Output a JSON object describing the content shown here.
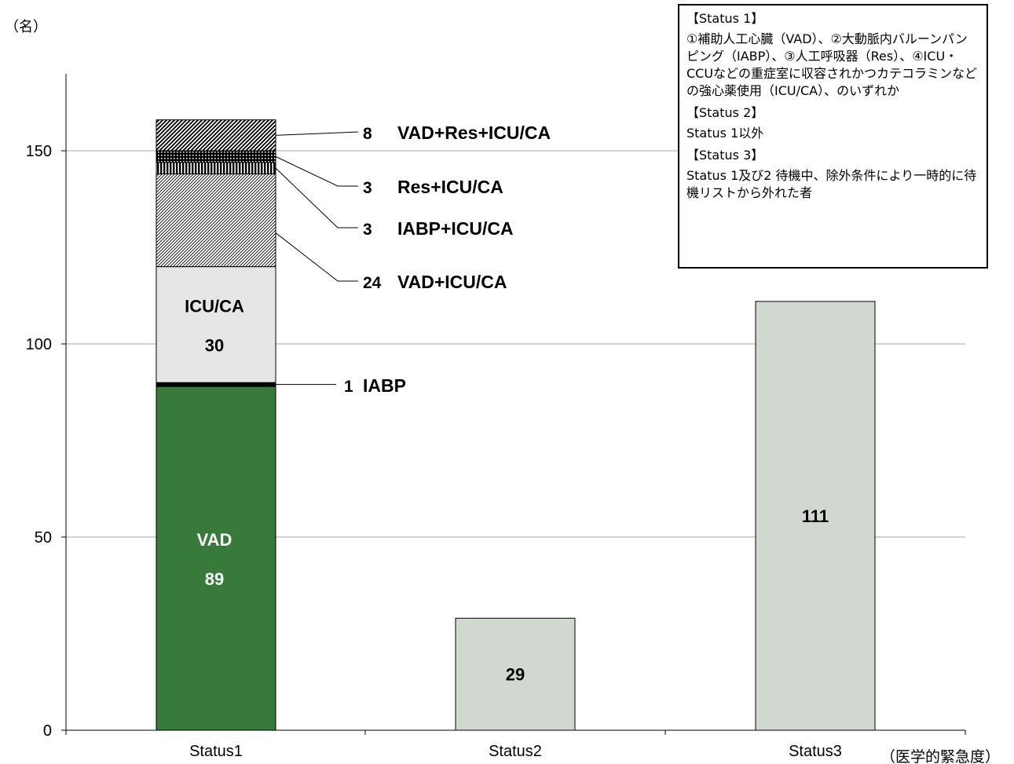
{
  "chart_data": {
    "type": "bar",
    "stacked": true,
    "y_unit_label": "（名）",
    "x_unit_label": "（医学的緊急度）",
    "categories": [
      "Status1",
      "Status2",
      "Status3"
    ],
    "ylim": [
      0,
      170
    ],
    "yticks": [
      0,
      50,
      100,
      150
    ],
    "grid": true,
    "status1_segments": [
      {
        "name": "VAD",
        "value": 89,
        "color": "#377a3a",
        "pattern": "solid",
        "inside_label": true,
        "inside_label_color": "#ffffff"
      },
      {
        "name": "IABP",
        "value": 1,
        "color": "#000000",
        "pattern": "solid",
        "callout_value": "1"
      },
      {
        "name": "ICU/CA",
        "value": 30,
        "color": "#e6e6e6",
        "pattern": "solid",
        "inside_label": true,
        "inside_label_color": "#000000"
      },
      {
        "name": "VAD+ICU/CA",
        "value": 24,
        "color": "#000000",
        "pattern": "diagonal-fine",
        "callout_value": "24"
      },
      {
        "name": "IABP+ICU/CA",
        "value": 3,
        "color": "#000000",
        "pattern": "vertical",
        "callout_value": "3"
      },
      {
        "name": "Res+ICU/CA",
        "value": 3,
        "color": "#000000",
        "pattern": "cross",
        "callout_value": "3"
      },
      {
        "name": "VAD+Res+ICU/CA",
        "value": 8,
        "color": "#000000",
        "pattern": "diagonal-bold",
        "callout_value": "8"
      }
    ],
    "simple_bars": [
      {
        "category": "Status2",
        "value": 29,
        "label": "29",
        "color": "#d0d8cf"
      },
      {
        "category": "Status3",
        "value": 111,
        "label": "111",
        "color": "#d0d8cf"
      }
    ]
  },
  "legend": {
    "items": [
      {
        "heading": "【Status 1】",
        "text": "①補助人工心臓（VAD）、②大動脈内バルーンパンピング（IABP）、③人工呼吸器（Res）、④ICU・CCUなどの重症室に収容されかつカテコラミンなどの強心薬使用（ICU/CA）、のいずれか"
      },
      {
        "heading": "【Status 2】",
        "text": "Status 1以外"
      },
      {
        "heading": "【Status 3】",
        "text": "Status 1及び2 待機中、除外条件により一時的に待機リストから外れた者"
      }
    ]
  }
}
